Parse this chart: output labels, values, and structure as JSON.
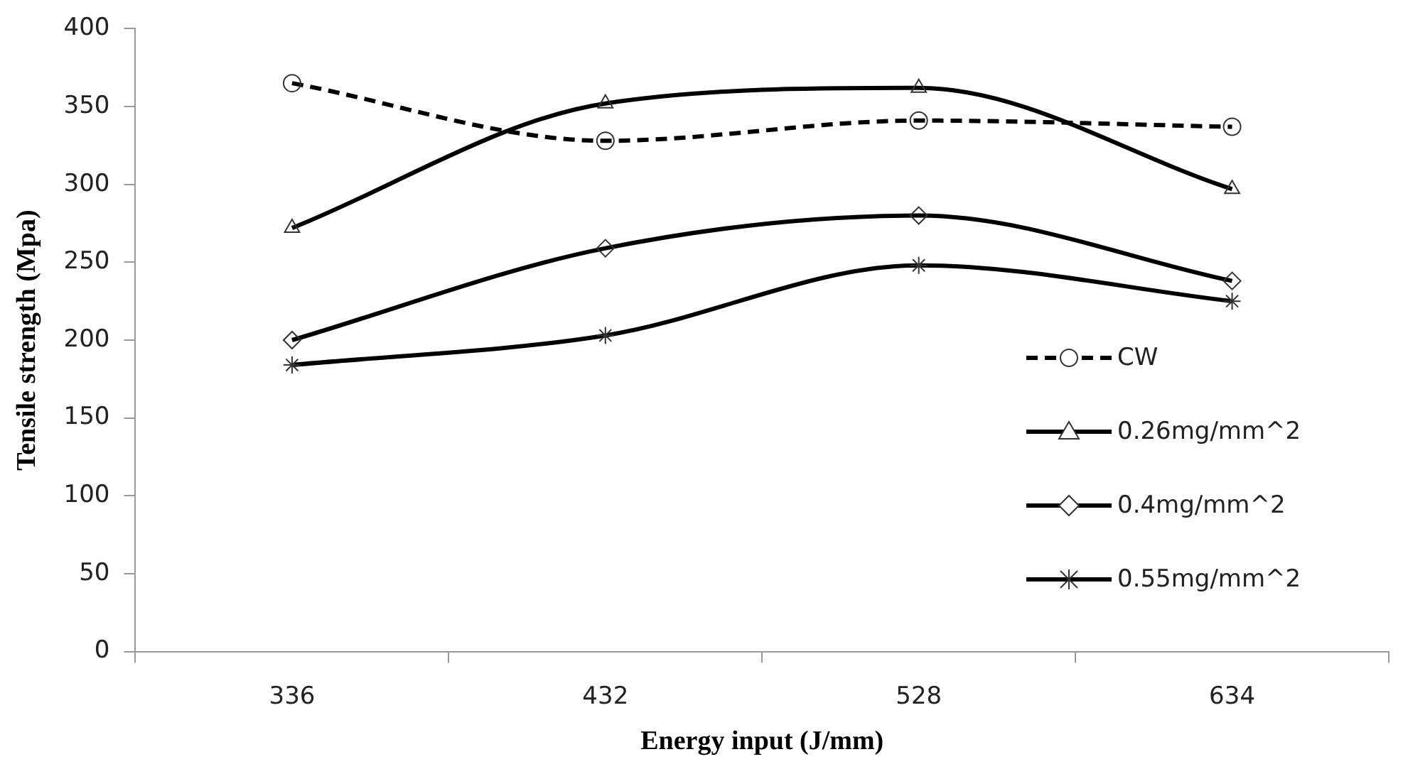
{
  "chart_data": {
    "type": "line",
    "xlabel": "Energy input (J/mm)",
    "ylabel": "Tensile strength (Mpa)",
    "categories": [
      "336",
      "432",
      "528",
      "634"
    ],
    "ylim": [
      0,
      400
    ],
    "yticks": [
      0,
      50,
      100,
      150,
      200,
      250,
      300,
      350,
      400
    ],
    "grid": false,
    "legend": "right",
    "series": [
      {
        "name": "CW",
        "color": "#000000",
        "marker": "circle",
        "line_style": "dashed",
        "values": [
          365,
          328,
          341,
          337
        ]
      },
      {
        "name": "0.26mg/mm^2",
        "color": "#000000",
        "marker": "triangle",
        "line_style": "solid",
        "values": [
          272,
          352,
          362,
          297
        ]
      },
      {
        "name": "0.4mg/mm^2",
        "color": "#000000",
        "marker": "diamond",
        "line_style": "solid",
        "values": [
          200,
          259,
          280,
          238
        ]
      },
      {
        "name": "0.55mg/mm^2",
        "color": "#000000",
        "marker": "cross",
        "line_style": "solid",
        "values": [
          184,
          203,
          248,
          225
        ]
      }
    ]
  }
}
